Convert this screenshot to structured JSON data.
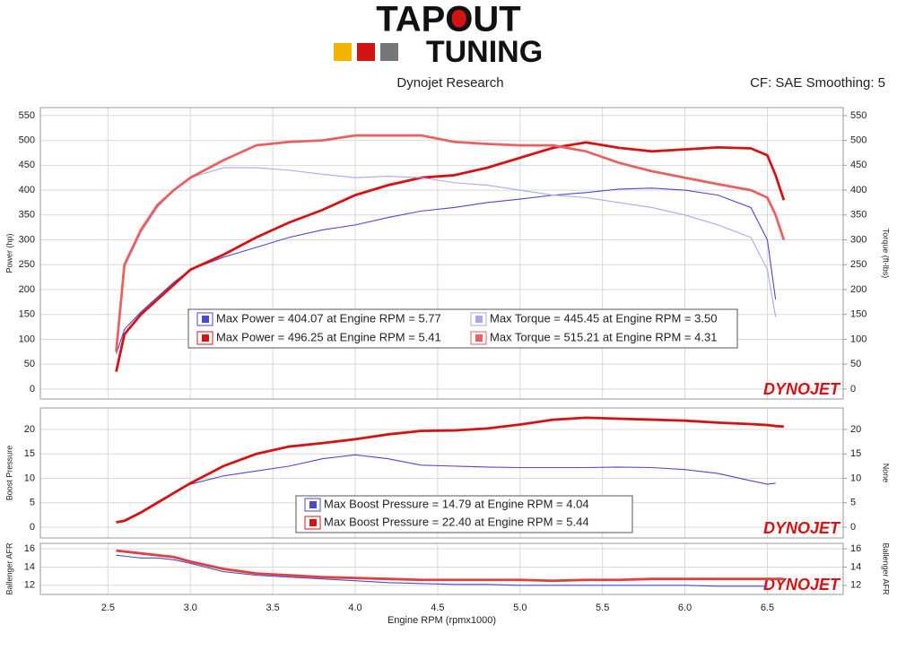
{
  "header": {
    "logo_top": "TAPOUT",
    "logo_bottom": "TUNING",
    "left": "Dynojet Research",
    "right": "CF: SAE Smoothing: 5"
  },
  "watermark": "DYNOJET",
  "chart_data": [
    {
      "type": "line",
      "ylabel": "Power (hp)",
      "y2label": "Torque (ft-lbs)",
      "x": [
        2.55,
        2.6,
        2.7,
        2.8,
        2.9,
        3.0,
        3.2,
        3.4,
        3.6,
        3.8,
        4.0,
        4.2,
        4.4,
        4.6,
        4.8,
        5.0,
        5.2,
        5.4,
        5.6,
        5.8,
        6.0,
        6.2,
        6.4,
        6.5,
        6.55,
        6.6
      ],
      "xlim": [
        2.09,
        6.96
      ],
      "ylim": [
        -20,
        566
      ],
      "yticks": [
        0,
        50,
        100,
        150,
        200,
        250,
        300,
        350,
        400,
        450,
        500,
        550
      ],
      "y2lim": [
        -20,
        566
      ],
      "y2ticks": [
        0,
        50,
        100,
        150,
        200,
        250,
        300,
        350,
        400,
        450,
        500,
        550
      ],
      "series": [
        {
          "name": "Max Power = 404.07 at Engine RPM = 5.77",
          "color": "#4a4ad0",
          "values": [
            70,
            120,
            155,
            185,
            215,
            240,
            265,
            285,
            305,
            320,
            330,
            345,
            358,
            365,
            375,
            382,
            390,
            395,
            402,
            404,
            400,
            390,
            365,
            300,
            180,
            null
          ]
        },
        {
          "name": "Max Power = 496.25 at Engine RPM = 5.41",
          "color": "#d41414",
          "values": [
            35,
            110,
            150,
            180,
            210,
            240,
            270,
            305,
            335,
            360,
            390,
            410,
            425,
            430,
            445,
            465,
            485,
            496,
            485,
            478,
            482,
            486,
            484,
            470,
            430,
            380
          ]
        },
        {
          "name": "Max Torque = 445.45 at Engine RPM = 3.50",
          "color": "#a8a8ea",
          "axis": "y2",
          "values": [
            70,
            245,
            315,
            365,
            400,
            425,
            445,
            445,
            440,
            432,
            425,
            428,
            425,
            415,
            410,
            400,
            390,
            385,
            375,
            365,
            350,
            330,
            305,
            240,
            145,
            null
          ]
        },
        {
          "name": "Max Torque = 515.21 at Engine RPM = 4.31",
          "color": "#e86262",
          "axis": "y2",
          "values": [
            75,
            250,
            320,
            370,
            400,
            425,
            460,
            490,
            497,
            500,
            510,
            510,
            510,
            497,
            493,
            490,
            490,
            478,
            455,
            438,
            425,
            412,
            400,
            385,
            350,
            300
          ]
        }
      ]
    },
    {
      "type": "line",
      "ylabel": "Boost Pressure",
      "y2label": "None",
      "x": [
        2.55,
        2.6,
        2.7,
        2.8,
        2.9,
        3.0,
        3.2,
        3.4,
        3.6,
        3.8,
        4.0,
        4.2,
        4.4,
        4.6,
        4.8,
        5.0,
        5.2,
        5.4,
        5.6,
        5.8,
        6.0,
        6.2,
        6.4,
        6.5,
        6.55,
        6.6
      ],
      "xlim": [
        2.09,
        6.96
      ],
      "ylim": [
        -2.2,
        24.4
      ],
      "yticks": [
        0,
        5,
        10,
        15,
        20
      ],
      "y2lim": [
        -2.2,
        24.4
      ],
      "y2ticks": [
        0,
        5,
        10,
        15,
        20
      ],
      "series": [
        {
          "name": "Max Boost Pressure = 14.79 at Engine RPM = 4.04",
          "color": "#4a4ad0",
          "values": [
            1.1,
            1.4,
            3.2,
            5.2,
            7,
            8.8,
            10.5,
            11.5,
            12.5,
            14,
            14.8,
            14,
            12.7,
            12.5,
            12.3,
            12.2,
            12.2,
            12.2,
            12.3,
            12.2,
            11.8,
            11,
            9.5,
            8.8,
            9,
            null
          ]
        },
        {
          "name": "Max Boost Pressure = 22.40 at Engine RPM = 5.44",
          "color": "#d41414",
          "values": [
            1,
            1.3,
            3,
            5,
            7,
            9,
            12.5,
            15,
            16.5,
            17.2,
            18,
            19,
            19.7,
            19.8,
            20.2,
            21,
            22,
            22.4,
            22.2,
            22,
            21.8,
            21.4,
            21.1,
            20.9,
            20.7,
            20.6
          ]
        }
      ]
    },
    {
      "type": "line",
      "ylabel": "Ballenger AFR",
      "y2label": "Ballenger AFR",
      "xlabel": "Engine RPM (rpmx1000)",
      "x": [
        2.55,
        2.6,
        2.7,
        2.8,
        2.9,
        3.0,
        3.2,
        3.4,
        3.6,
        3.8,
        4.0,
        4.2,
        4.4,
        4.6,
        4.8,
        5.0,
        5.2,
        5.4,
        5.6,
        5.8,
        6.0,
        6.2,
        6.4,
        6.5,
        6.55,
        6.6
      ],
      "xlim": [
        2.09,
        6.96
      ],
      "xticks": [
        2.5,
        {
          "value": 3,
          "label": "3.0"
        },
        3.5,
        {
          "value": 4,
          "label": "4.0"
        },
        4.5,
        {
          "value": 5,
          "label": "5.0"
        },
        5.5,
        {
          "value": 6,
          "label": "6.0"
        },
        6.5
      ],
      "ylim": [
        11,
        16.6
      ],
      "yticks": [
        12,
        14,
        16
      ],
      "y2lim": [
        11,
        16.6
      ],
      "y2ticks": [
        12,
        14,
        16
      ],
      "series": [
        {
          "color": "#4a4ad0",
          "values": [
            15.3,
            15.2,
            15.0,
            15.0,
            14.8,
            14.4,
            13.5,
            13.1,
            12.9,
            12.7,
            12.5,
            12.3,
            12.2,
            12.1,
            12.1,
            12.0,
            12.0,
            12.0,
            12.0,
            12.0,
            12.0,
            11.9,
            11.9,
            11.9,
            null,
            null
          ]
        },
        {
          "color": "#e04040",
          "values": [
            15.8,
            15.7,
            15.5,
            15.3,
            15.1,
            14.6,
            13.8,
            13.3,
            13.1,
            12.9,
            12.8,
            12.7,
            12.6,
            12.6,
            12.6,
            12.6,
            12.5,
            12.6,
            12.6,
            12.7,
            12.7,
            12.7,
            12.7,
            12.7,
            12.7,
            12.7
          ]
        }
      ]
    }
  ]
}
